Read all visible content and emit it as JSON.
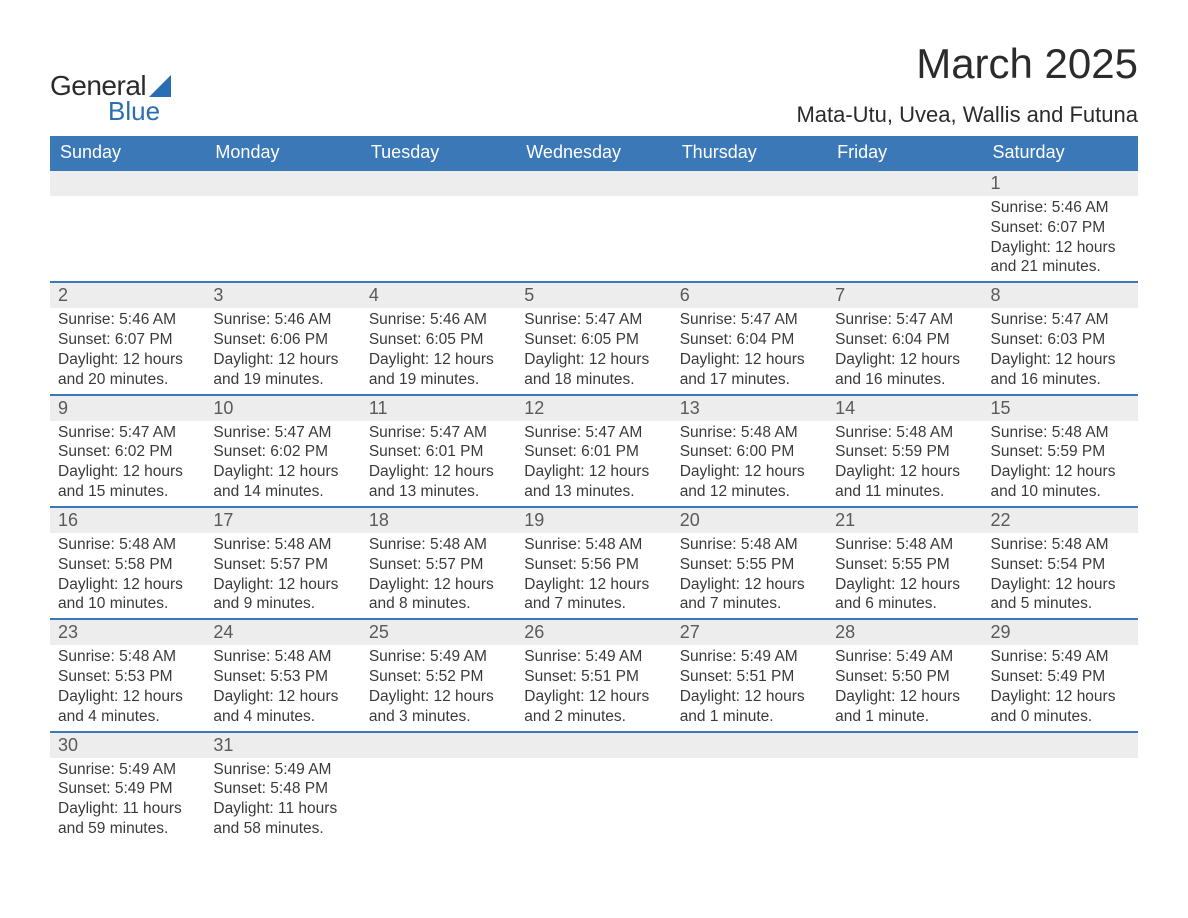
{
  "brand": {
    "word1": "General",
    "word2": "Blue",
    "accent_color": "#2a6db3"
  },
  "title": "March 2025",
  "location": "Mata-Utu, Uvea, Wallis and Futuna",
  "colors": {
    "header_bg": "#3b78b8",
    "header_text": "#ffffff",
    "daynum_bg": "#ededed",
    "border": "#3b78b8",
    "text": "#3a3a3a"
  },
  "day_headers": [
    "Sunday",
    "Monday",
    "Tuesday",
    "Wednesday",
    "Thursday",
    "Friday",
    "Saturday"
  ],
  "weeks": [
    [
      {
        "n": "",
        "lines": []
      },
      {
        "n": "",
        "lines": []
      },
      {
        "n": "",
        "lines": []
      },
      {
        "n": "",
        "lines": []
      },
      {
        "n": "",
        "lines": []
      },
      {
        "n": "",
        "lines": []
      },
      {
        "n": "1",
        "lines": [
          "Sunrise: 5:46 AM",
          "Sunset: 6:07 PM",
          "Daylight: 12 hours and 21 minutes."
        ]
      }
    ],
    [
      {
        "n": "2",
        "lines": [
          "Sunrise: 5:46 AM",
          "Sunset: 6:07 PM",
          "Daylight: 12 hours and 20 minutes."
        ]
      },
      {
        "n": "3",
        "lines": [
          "Sunrise: 5:46 AM",
          "Sunset: 6:06 PM",
          "Daylight: 12 hours and 19 minutes."
        ]
      },
      {
        "n": "4",
        "lines": [
          "Sunrise: 5:46 AM",
          "Sunset: 6:05 PM",
          "Daylight: 12 hours and 19 minutes."
        ]
      },
      {
        "n": "5",
        "lines": [
          "Sunrise: 5:47 AM",
          "Sunset: 6:05 PM",
          "Daylight: 12 hours and 18 minutes."
        ]
      },
      {
        "n": "6",
        "lines": [
          "Sunrise: 5:47 AM",
          "Sunset: 6:04 PM",
          "Daylight: 12 hours and 17 minutes."
        ]
      },
      {
        "n": "7",
        "lines": [
          "Sunrise: 5:47 AM",
          "Sunset: 6:04 PM",
          "Daylight: 12 hours and 16 minutes."
        ]
      },
      {
        "n": "8",
        "lines": [
          "Sunrise: 5:47 AM",
          "Sunset: 6:03 PM",
          "Daylight: 12 hours and 16 minutes."
        ]
      }
    ],
    [
      {
        "n": "9",
        "lines": [
          "Sunrise: 5:47 AM",
          "Sunset: 6:02 PM",
          "Daylight: 12 hours and 15 minutes."
        ]
      },
      {
        "n": "10",
        "lines": [
          "Sunrise: 5:47 AM",
          "Sunset: 6:02 PM",
          "Daylight: 12 hours and 14 minutes."
        ]
      },
      {
        "n": "11",
        "lines": [
          "Sunrise: 5:47 AM",
          "Sunset: 6:01 PM",
          "Daylight: 12 hours and 13 minutes."
        ]
      },
      {
        "n": "12",
        "lines": [
          "Sunrise: 5:47 AM",
          "Sunset: 6:01 PM",
          "Daylight: 12 hours and 13 minutes."
        ]
      },
      {
        "n": "13",
        "lines": [
          "Sunrise: 5:48 AM",
          "Sunset: 6:00 PM",
          "Daylight: 12 hours and 12 minutes."
        ]
      },
      {
        "n": "14",
        "lines": [
          "Sunrise: 5:48 AM",
          "Sunset: 5:59 PM",
          "Daylight: 12 hours and 11 minutes."
        ]
      },
      {
        "n": "15",
        "lines": [
          "Sunrise: 5:48 AM",
          "Sunset: 5:59 PM",
          "Daylight: 12 hours and 10 minutes."
        ]
      }
    ],
    [
      {
        "n": "16",
        "lines": [
          "Sunrise: 5:48 AM",
          "Sunset: 5:58 PM",
          "Daylight: 12 hours and 10 minutes."
        ]
      },
      {
        "n": "17",
        "lines": [
          "Sunrise: 5:48 AM",
          "Sunset: 5:57 PM",
          "Daylight: 12 hours and 9 minutes."
        ]
      },
      {
        "n": "18",
        "lines": [
          "Sunrise: 5:48 AM",
          "Sunset: 5:57 PM",
          "Daylight: 12 hours and 8 minutes."
        ]
      },
      {
        "n": "19",
        "lines": [
          "Sunrise: 5:48 AM",
          "Sunset: 5:56 PM",
          "Daylight: 12 hours and 7 minutes."
        ]
      },
      {
        "n": "20",
        "lines": [
          "Sunrise: 5:48 AM",
          "Sunset: 5:55 PM",
          "Daylight: 12 hours and 7 minutes."
        ]
      },
      {
        "n": "21",
        "lines": [
          "Sunrise: 5:48 AM",
          "Sunset: 5:55 PM",
          "Daylight: 12 hours and 6 minutes."
        ]
      },
      {
        "n": "22",
        "lines": [
          "Sunrise: 5:48 AM",
          "Sunset: 5:54 PM",
          "Daylight: 12 hours and 5 minutes."
        ]
      }
    ],
    [
      {
        "n": "23",
        "lines": [
          "Sunrise: 5:48 AM",
          "Sunset: 5:53 PM",
          "Daylight: 12 hours and 4 minutes."
        ]
      },
      {
        "n": "24",
        "lines": [
          "Sunrise: 5:48 AM",
          "Sunset: 5:53 PM",
          "Daylight: 12 hours and 4 minutes."
        ]
      },
      {
        "n": "25",
        "lines": [
          "Sunrise: 5:49 AM",
          "Sunset: 5:52 PM",
          "Daylight: 12 hours and 3 minutes."
        ]
      },
      {
        "n": "26",
        "lines": [
          "Sunrise: 5:49 AM",
          "Sunset: 5:51 PM",
          "Daylight: 12 hours and 2 minutes."
        ]
      },
      {
        "n": "27",
        "lines": [
          "Sunrise: 5:49 AM",
          "Sunset: 5:51 PM",
          "Daylight: 12 hours and 1 minute."
        ]
      },
      {
        "n": "28",
        "lines": [
          "Sunrise: 5:49 AM",
          "Sunset: 5:50 PM",
          "Daylight: 12 hours and 1 minute."
        ]
      },
      {
        "n": "29",
        "lines": [
          "Sunrise: 5:49 AM",
          "Sunset: 5:49 PM",
          "Daylight: 12 hours and 0 minutes."
        ]
      }
    ],
    [
      {
        "n": "30",
        "lines": [
          "Sunrise: 5:49 AM",
          "Sunset: 5:49 PM",
          "Daylight: 11 hours and 59 minutes."
        ]
      },
      {
        "n": "31",
        "lines": [
          "Sunrise: 5:49 AM",
          "Sunset: 5:48 PM",
          "Daylight: 11 hours and 58 minutes."
        ]
      },
      {
        "n": "",
        "lines": []
      },
      {
        "n": "",
        "lines": []
      },
      {
        "n": "",
        "lines": []
      },
      {
        "n": "",
        "lines": []
      },
      {
        "n": "",
        "lines": []
      }
    ]
  ]
}
